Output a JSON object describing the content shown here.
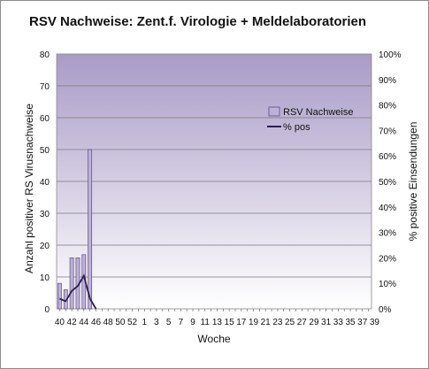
{
  "chart_data": {
    "type": "bar",
    "title": "RSV Nachweise: Zent.f. Virologie + Meldelaboratorien",
    "xlabel": "Woche",
    "ylabel_left": "Anzahl positiver  RS Virusnachweise",
    "ylabel_right": "% positive  Einsendungen",
    "ylim_left": [
      0,
      80
    ],
    "left_ticks": [
      0,
      10,
      20,
      30,
      40,
      50,
      60,
      70,
      80
    ],
    "ylim_right": [
      0,
      100
    ],
    "right_ticks": [
      "0%",
      "10%",
      "20%",
      "30%",
      "40%",
      "50%",
      "60%",
      "70%",
      "80%",
      "90%",
      "100%"
    ],
    "x_tick_labels": [
      "40",
      "42",
      "44",
      "46",
      "48",
      "50",
      "52",
      "1",
      "3",
      "5",
      "7",
      "9",
      "11",
      "13",
      "15",
      "17",
      "19",
      "21",
      "23",
      "25",
      "27",
      "29",
      "31",
      "33",
      "35",
      "37",
      "39"
    ],
    "weeks": [
      40,
      41,
      42,
      43,
      44,
      45,
      46,
      47,
      48,
      49,
      50,
      51,
      52,
      1,
      2,
      3,
      4,
      5,
      6,
      7,
      8,
      9,
      10,
      11,
      12,
      13,
      14,
      15,
      16,
      17,
      18,
      19,
      20,
      21,
      22,
      23,
      24,
      25,
      26,
      27,
      28,
      29,
      30,
      31,
      32,
      33,
      34,
      35,
      36,
      37,
      38,
      39
    ],
    "series": [
      {
        "name": "RSV Nachweise",
        "type": "bar",
        "axis": "left",
        "color": "#bdb2d6",
        "values": [
          8,
          6,
          16,
          16,
          17,
          50,
          0,
          0,
          0,
          0,
          0,
          0,
          0,
          0,
          0,
          0,
          0,
          0,
          0,
          0,
          0,
          0,
          0,
          0,
          0,
          0,
          0,
          0,
          0,
          0,
          0,
          0,
          0,
          0,
          0,
          0,
          0,
          0,
          0,
          0,
          0,
          0,
          0,
          0,
          0,
          0,
          0,
          0,
          0,
          0,
          0,
          0
        ]
      },
      {
        "name": "% pos",
        "type": "line",
        "axis": "right",
        "color": "#2e1f4f",
        "values": [
          4,
          3,
          7,
          9,
          13,
          4,
          0,
          null,
          null,
          null,
          null,
          null,
          null,
          null,
          null,
          null,
          null,
          null,
          null,
          null,
          null,
          null,
          null,
          null,
          null,
          null,
          null,
          null,
          null,
          null,
          null,
          null,
          null,
          null,
          null,
          null,
          null,
          null,
          null,
          null,
          null,
          null,
          null,
          null,
          null,
          null,
          null,
          null,
          null,
          null,
          null,
          null
        ]
      }
    ],
    "grid": true,
    "legend_position": "right"
  }
}
